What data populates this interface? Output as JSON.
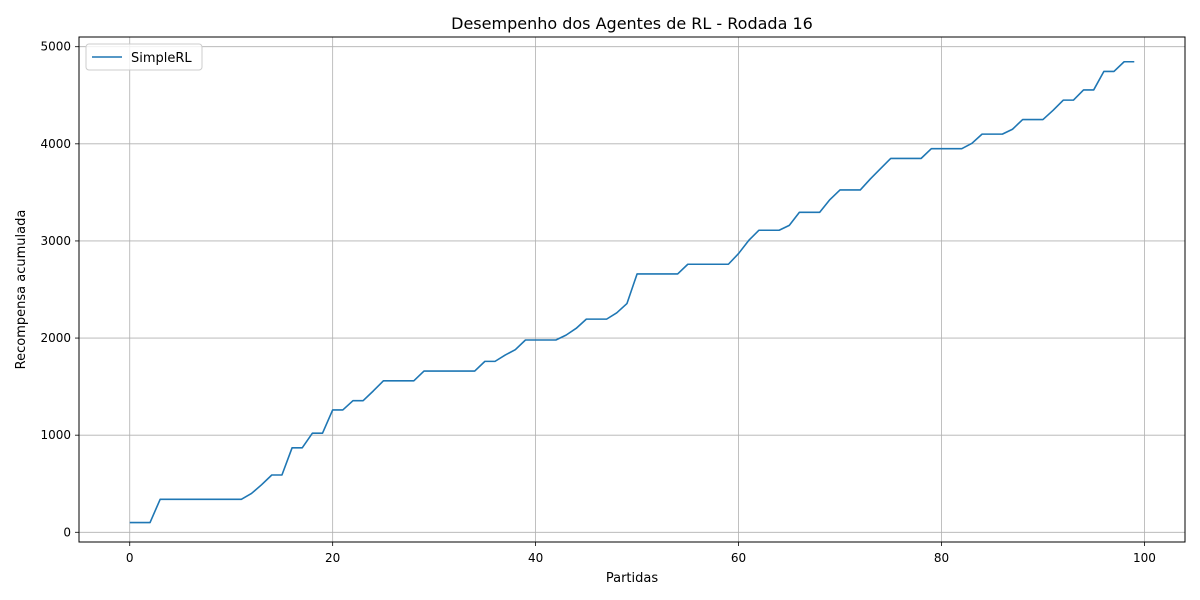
{
  "chart_data": {
    "type": "line",
    "title": "Desempenho dos Agentes de RL - Rodada 16",
    "xlabel": "Partidas",
    "ylabel": "Recompensa acumulada",
    "xlim": [
      -5,
      104
    ],
    "ylim": [
      -100,
      5100
    ],
    "xticks": [
      0,
      20,
      40,
      60,
      80,
      100
    ],
    "yticks": [
      0,
      1000,
      2000,
      3000,
      4000,
      5000
    ],
    "grid": true,
    "legend_position": "top-left",
    "series": [
      {
        "name": "SimpleRL",
        "color": "#1f77b4",
        "x": [
          0,
          1,
          2,
          3,
          4,
          5,
          6,
          7,
          8,
          9,
          10,
          11,
          12,
          13,
          14,
          15,
          16,
          17,
          18,
          19,
          20,
          21,
          22,
          23,
          24,
          25,
          26,
          27,
          28,
          29,
          30,
          31,
          32,
          33,
          34,
          35,
          36,
          37,
          38,
          39,
          40,
          41,
          42,
          43,
          44,
          45,
          46,
          47,
          48,
          49,
          50,
          51,
          52,
          53,
          54,
          55,
          56,
          57,
          58,
          59,
          60,
          61,
          62,
          63,
          64,
          65,
          66,
          67,
          68,
          69,
          70,
          71,
          72,
          73,
          74,
          75,
          76,
          77,
          78,
          79,
          80,
          81,
          82,
          83,
          84,
          85,
          86,
          87,
          88,
          89,
          90,
          91,
          92,
          93,
          94,
          95,
          96,
          97,
          98,
          99
        ],
        "y": [
          100,
          100,
          100,
          340,
          340,
          340,
          340,
          340,
          340,
          340,
          340,
          340,
          400,
          490,
          590,
          590,
          870,
          870,
          1020,
          1020,
          1260,
          1260,
          1355,
          1355,
          1455,
          1560,
          1560,
          1560,
          1560,
          1660,
          1660,
          1660,
          1660,
          1660,
          1660,
          1760,
          1760,
          1825,
          1880,
          1980,
          1980,
          1980,
          1980,
          2030,
          2100,
          2195,
          2195,
          2195,
          2260,
          2355,
          2660,
          2660,
          2660,
          2660,
          2660,
          2760,
          2760,
          2760,
          2760,
          2760,
          2870,
          3005,
          3110,
          3110,
          3110,
          3160,
          3295,
          3295,
          3295,
          3425,
          3525,
          3525,
          3525,
          3640,
          3745,
          3850,
          3850,
          3850,
          3850,
          3950,
          3950,
          3950,
          3950,
          4005,
          4100,
          4100,
          4100,
          4150,
          4250,
          4250,
          4250,
          4345,
          4450,
          4450,
          4555,
          4555,
          4745,
          4745,
          4845,
          4845
        ]
      }
    ]
  }
}
